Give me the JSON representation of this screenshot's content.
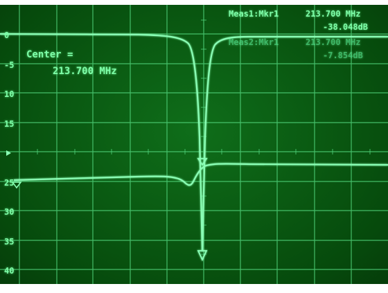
{
  "scope": {
    "y_ticks": [
      "0",
      "-5",
      "10",
      "15",
      "",
      "25",
      "30",
      "35",
      "40"
    ],
    "marker_arrow": "triangle-right-icon",
    "center_label": "Center =",
    "center_value": "213.700 MHz",
    "meas1": {
      "label": "Meas1:Mkr1",
      "freq": "213.700 MHz",
      "value": "-38.048dB"
    },
    "meas2": {
      "label": "Meas2:Mkr1",
      "freq": "213.700 MHz",
      "value": "-7.854dB"
    },
    "trace_color": "#8affb5",
    "grid_color": "#4fd17a",
    "screen_color": "#0a5a12"
  }
}
